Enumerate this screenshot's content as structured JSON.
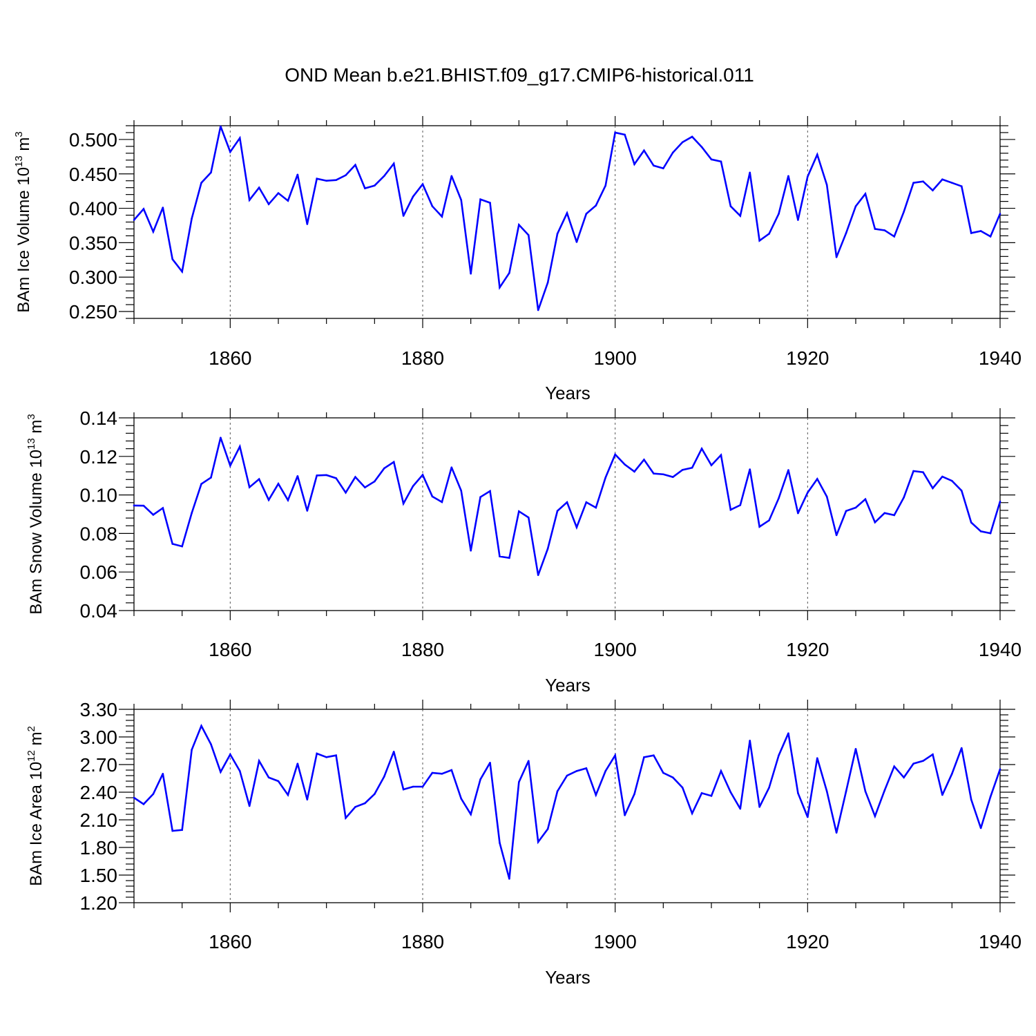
{
  "figure": {
    "title": "OND Mean b.e21.BHIST.f09_g17.CMIP6-historical.011"
  },
  "chart_data": [
    {
      "type": "line",
      "ylabel": {
        "prefix": "BAm Ice Volume 10",
        "exp1": "13",
        "mid": " m",
        "exp2": "3"
      },
      "xlabel": "Years",
      "xlim": [
        1850,
        1940
      ],
      "ylim": [
        0.24,
        0.52
      ],
      "yticks": [
        0.25,
        0.3,
        0.35,
        0.4,
        0.45,
        0.5
      ],
      "ytick_labels": [
        "0.250",
        "0.300",
        "0.350",
        "0.400",
        "0.450",
        "0.500"
      ],
      "xticks": [
        1860,
        1880,
        1900,
        1920,
        1940
      ],
      "xtick_labels": [
        "1860",
        "1880",
        "1900",
        "1920",
        "1940"
      ],
      "grid": "vertical dashed at major x ticks",
      "color": "#0000ff",
      "x_start": 1850,
      "values": [
        0.383,
        0.399,
        0.366,
        0.401,
        0.326,
        0.308,
        0.385,
        0.437,
        0.452,
        0.519,
        0.482,
        0.502,
        0.412,
        0.43,
        0.406,
        0.422,
        0.411,
        0.449,
        0.377,
        0.443,
        0.44,
        0.441,
        0.448,
        0.463,
        0.429,
        0.433,
        0.447,
        0.465,
        0.389,
        0.417,
        0.435,
        0.403,
        0.388,
        0.447,
        0.412,
        0.305,
        0.413,
        0.408,
        0.285,
        0.306,
        0.376,
        0.361,
        0.252,
        0.292,
        0.363,
        0.393,
        0.351,
        0.392,
        0.404,
        0.433,
        0.51,
        0.507,
        0.464,
        0.484,
        0.462,
        0.458,
        0.481,
        0.496,
        0.504,
        0.489,
        0.471,
        0.468,
        0.403,
        0.389,
        0.452,
        0.353,
        0.363,
        0.392,
        0.447,
        0.383,
        0.446,
        0.478,
        0.434,
        0.329,
        0.364,
        0.403,
        0.421,
        0.37,
        0.368,
        0.359,
        0.395,
        0.437,
        0.439,
        0.426,
        0.442,
        0.437,
        0.432,
        0.364,
        0.367,
        0.359,
        0.392
      ]
    },
    {
      "type": "line",
      "ylabel": {
        "prefix": "BAm Snow Volume 10",
        "exp1": "13",
        "mid": " m",
        "exp2": "3"
      },
      "xlabel": "Years",
      "xlim": [
        1850,
        1940
      ],
      "ylim": [
        0.04,
        0.14
      ],
      "yticks": [
        0.04,
        0.06,
        0.08,
        0.1,
        0.12,
        0.14
      ],
      "ytick_labels": [
        "0.04",
        "0.06",
        "0.08",
        "0.10",
        "0.12",
        "0.14"
      ],
      "xticks": [
        1860,
        1880,
        1900,
        1920,
        1940
      ],
      "xtick_labels": [
        "1860",
        "1880",
        "1900",
        "1920",
        "1940"
      ],
      "grid": "vertical dashed at major x ticks",
      "color": "#0000ff",
      "x_start": 1850,
      "values": [
        0.0945,
        0.0944,
        0.0897,
        0.0932,
        0.0746,
        0.0733,
        0.0906,
        0.1057,
        0.109,
        0.1297,
        0.1152,
        0.1251,
        0.104,
        0.1082,
        0.0974,
        0.1058,
        0.0973,
        0.1098,
        0.0918,
        0.1101,
        0.1103,
        0.1087,
        0.1012,
        0.1093,
        0.1039,
        0.107,
        0.1138,
        0.1171,
        0.0955,
        0.1046,
        0.1104,
        0.0992,
        0.0963,
        0.1143,
        0.1022,
        0.0711,
        0.0989,
        0.102,
        0.0681,
        0.0673,
        0.0915,
        0.0883,
        0.0584,
        0.0721,
        0.0917,
        0.0962,
        0.0832,
        0.0962,
        0.0934,
        0.109,
        0.121,
        0.1158,
        0.1121,
        0.1183,
        0.1111,
        0.1107,
        0.1093,
        0.113,
        0.1141,
        0.124,
        0.1154,
        0.1207,
        0.0923,
        0.0947,
        0.1133,
        0.0835,
        0.0868,
        0.0983,
        0.1129,
        0.0905,
        0.1012,
        0.1083,
        0.0991,
        0.0791,
        0.0917,
        0.0934,
        0.0978,
        0.0858,
        0.0906,
        0.0895,
        0.0987,
        0.1124,
        0.1118,
        0.1035,
        0.1095,
        0.1073,
        0.1022,
        0.0857,
        0.0811,
        0.0801,
        0.0966
      ]
    },
    {
      "type": "line",
      "ylabel": {
        "prefix": "BAm Ice Area 10",
        "exp1": "12",
        "mid": " m",
        "exp2": "2"
      },
      "xlabel": "Years",
      "xlim": [
        1850,
        1940
      ],
      "ylim": [
        1.2,
        3.3
      ],
      "yticks": [
        1.2,
        1.5,
        1.8,
        2.1,
        2.4,
        2.7,
        3.0,
        3.3
      ],
      "ytick_labels": [
        "1.20",
        "1.50",
        "1.80",
        "2.10",
        "2.40",
        "2.70",
        "3.00",
        "3.30"
      ],
      "xticks": [
        1860,
        1880,
        1900,
        1920,
        1940
      ],
      "xtick_labels": [
        "1860",
        "1880",
        "1900",
        "1920",
        "1940"
      ],
      "grid": "vertical dashed at major x ticks",
      "color": "#0000ff",
      "x_start": 1850,
      "values": [
        2.34,
        2.27,
        2.38,
        2.6,
        1.98,
        1.99,
        2.86,
        3.12,
        2.92,
        2.62,
        2.81,
        2.63,
        2.25,
        2.74,
        2.56,
        2.52,
        2.37,
        2.71,
        2.32,
        2.82,
        2.78,
        2.8,
        2.12,
        2.24,
        2.28,
        2.38,
        2.57,
        2.84,
        2.43,
        2.46,
        2.46,
        2.61,
        2.6,
        2.64,
        2.33,
        2.16,
        2.54,
        2.72,
        1.85,
        1.46,
        2.51,
        2.74,
        1.86,
        2.0,
        2.41,
        2.58,
        2.63,
        2.66,
        2.37,
        2.63,
        2.8,
        2.15,
        2.38,
        2.78,
        2.8,
        2.61,
        2.56,
        2.45,
        2.17,
        2.39,
        2.36,
        2.63,
        2.4,
        2.22,
        2.96,
        2.24,
        2.45,
        2.8,
        3.04,
        2.39,
        2.13,
        2.77,
        2.41,
        1.96,
        2.41,
        2.87,
        2.41,
        2.14,
        2.42,
        2.68,
        2.56,
        2.71,
        2.74,
        2.81,
        2.37,
        2.6,
        2.88,
        2.32,
        2.01,
        2.35,
        2.65
      ]
    }
  ]
}
